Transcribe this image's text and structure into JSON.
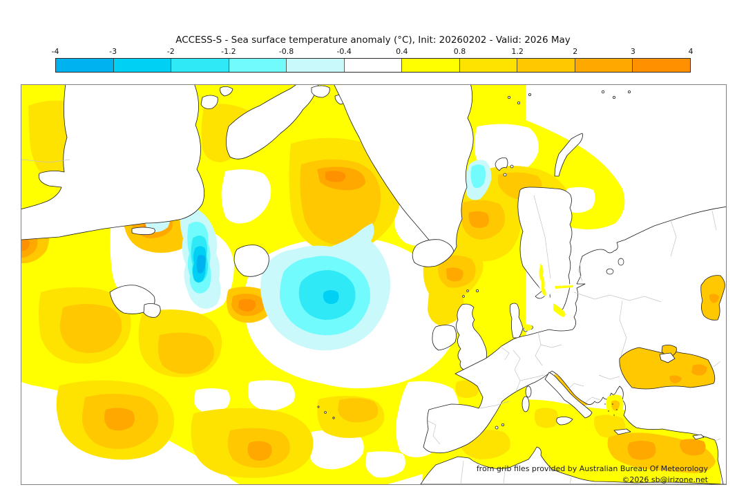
{
  "title": "ACCESS-S - Sea surface temperature anomaly (°C), Init: 20260202 - Valid: 2026 May",
  "colorbar": {
    "ticks": [
      "-4",
      "-3",
      "-2",
      "-1.2",
      "-0.8",
      "-0.4",
      "0.4",
      "0.8",
      "1.2",
      "2",
      "3",
      "4"
    ],
    "segments": [
      "cm4",
      "cm3",
      "cm2",
      "cm12",
      "cm08",
      "neutral",
      "p04",
      "p08",
      "p12",
      "p2",
      "p3"
    ],
    "units": "°C"
  },
  "palette": {
    "cm4": "#00b3f0",
    "cm3": "#00d0f4",
    "cm2": "#30e9f6",
    "cm12": "#72fbfd",
    "cm08": "#c9f9fb",
    "neutral": "#ffffff",
    "p04": "#ffff00",
    "p08": "#ffe300",
    "p12": "#ffc800",
    "p2": "#ffa800",
    "p3": "#ff9000",
    "land": "#ffffff",
    "coast": "#1a1a1a",
    "border_gray": "#c3c3c3",
    "island_speck": "#111111",
    "frame": "#7f7f7f"
  },
  "attribution": {
    "line1": "from grib files provided by Australian Bureau Of Meteorology",
    "line2": "©2026 sb@irizone.net"
  },
  "chart_data": {
    "type": "map",
    "title": "ACCESS-S - Sea surface temperature anomaly (°C), Init: 20260202 - Valid: 2026 May",
    "legend_ticks": [
      -4,
      -3,
      -2,
      -1.2,
      -0.8,
      -0.4,
      0.4,
      0.8,
      1.2,
      2,
      3,
      4
    ],
    "units": "°C",
    "legend_position": "top"
  }
}
